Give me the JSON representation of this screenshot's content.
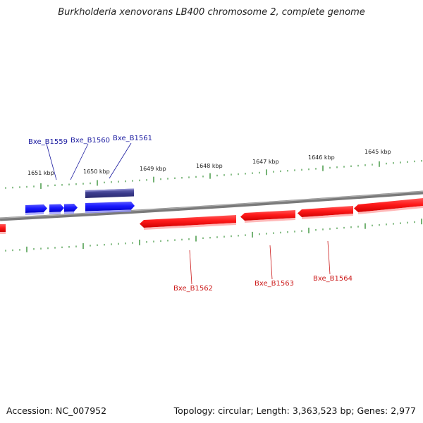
{
  "title": "Burkholderia xenovorans LB400 chromosome 2, complete genome",
  "footer": {
    "accession": "Accession: NC_007952",
    "summary": "Topology: circular; Length: 3,363,523 bp; Genes: 2,977"
  },
  "colors": {
    "forward_gene": "#1a1aff",
    "reverse_gene": "#ff1a1a",
    "selected_gene": "#3b3b8c",
    "ticks": "#2a8a2a",
    "backbone": "#808080",
    "forward_label": "#1a1aa0",
    "reverse_label": "#cc1a1a"
  },
  "scale_labels": [
    "1651 kbp",
    "1650 kbp",
    "1649 kbp",
    "1648 kbp",
    "1647 kbp",
    "1646 kbp",
    "1645 kbp"
  ],
  "forward_labels": [
    "Bxe_B1559",
    "Bxe_B1560",
    "Bxe_B1561"
  ],
  "reverse_labels": [
    "Bxe_B1562",
    "Bxe_B1563",
    "Bxe_B1564"
  ]
}
